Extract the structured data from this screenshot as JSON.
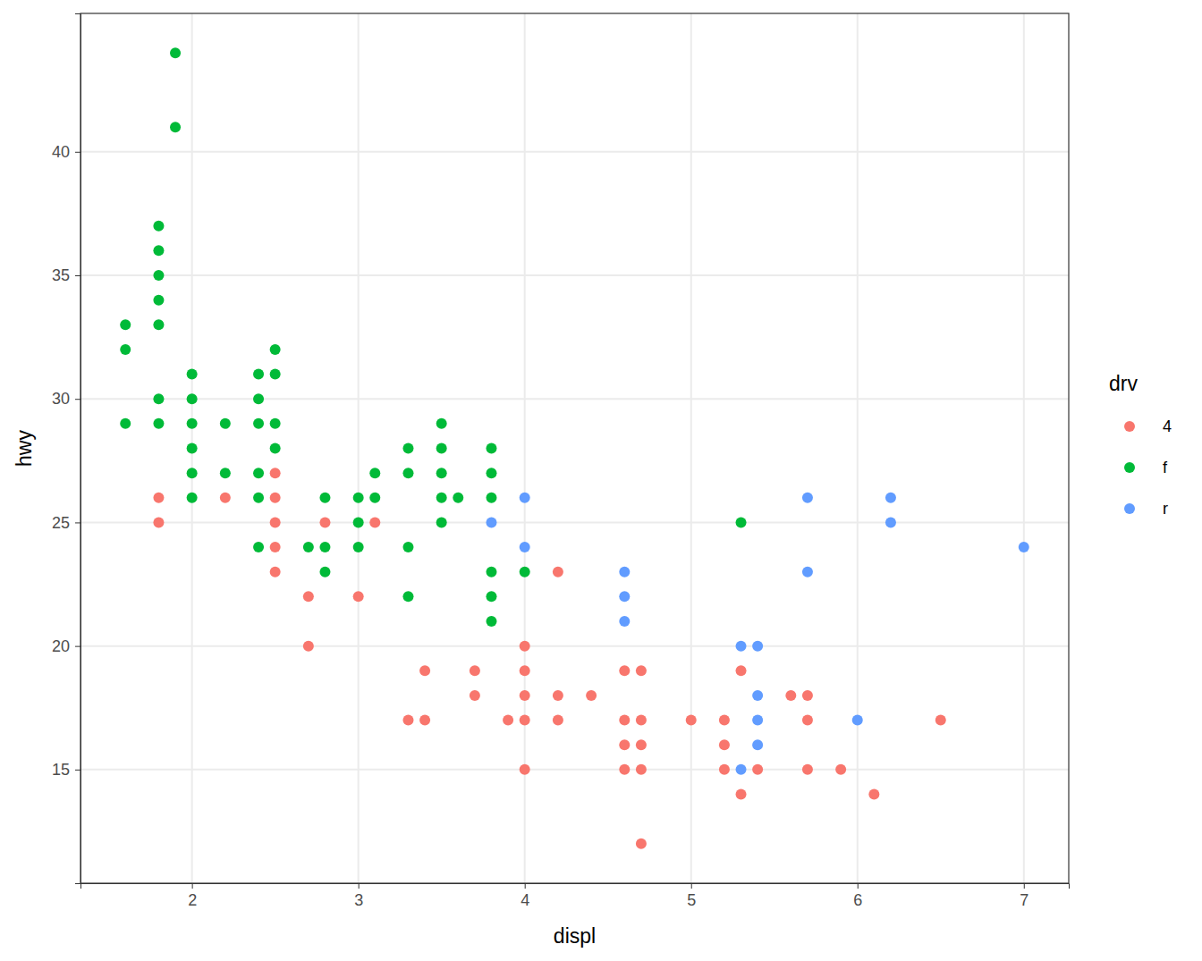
{
  "chart_data": {
    "type": "scatter",
    "x_label": "displ",
    "y_label": "hwy",
    "legend_title": "drv",
    "xlim": [
      1.33,
      7.27
    ],
    "ylim": [
      10.4,
      45.6
    ],
    "xticks": [
      2,
      3,
      4,
      5,
      6,
      7
    ],
    "yticks": [
      15,
      20,
      25,
      30,
      35,
      40
    ],
    "grid": true,
    "legend": "right",
    "marker": "circle",
    "series": [
      {
        "name": "4",
        "color": "#F8766D",
        "x": [
          1.8,
          1.8,
          2.2,
          2.5,
          2.5,
          2.5,
          2.5,
          2.5,
          2.7,
          2.7,
          2.8,
          3.0,
          3.1,
          3.3,
          3.4,
          3.4,
          3.7,
          3.7,
          3.9,
          4.0,
          4.0,
          4.0,
          4.0,
          4.0,
          4.2,
          4.2,
          4.2,
          4.4,
          4.6,
          4.6,
          4.6,
          4.6,
          4.7,
          4.7,
          4.7,
          4.7,
          4.7,
          5.0,
          5.2,
          5.2,
          5.2,
          5.3,
          5.3,
          5.4,
          5.6,
          5.7,
          5.7,
          5.7,
          5.9,
          6.1,
          6.5
        ],
        "values": [
          26,
          25,
          26,
          27,
          26,
          25,
          24,
          23,
          22,
          20,
          25,
          22,
          25,
          17,
          19,
          17,
          19,
          18,
          17,
          20,
          19,
          18,
          17,
          15,
          23,
          18,
          17,
          18,
          19,
          17,
          16,
          15,
          19,
          17,
          16,
          15,
          12,
          17,
          17,
          16,
          15,
          19,
          14,
          15,
          18,
          18,
          17,
          15,
          15,
          14,
          17
        ]
      },
      {
        "name": "f",
        "color": "#00BA38",
        "x": [
          1.6,
          1.6,
          1.6,
          1.8,
          1.8,
          1.8,
          1.8,
          1.8,
          1.8,
          1.8,
          1.9,
          1.9,
          2.0,
          2.0,
          2.0,
          2.0,
          2.0,
          2.0,
          2.2,
          2.2,
          2.4,
          2.4,
          2.4,
          2.4,
          2.4,
          2.4,
          2.5,
          2.5,
          2.5,
          2.5,
          2.7,
          2.8,
          2.8,
          2.8,
          3.0,
          3.0,
          3.0,
          3.1,
          3.1,
          3.3,
          3.3,
          3.3,
          3.3,
          3.5,
          3.5,
          3.5,
          3.5,
          3.5,
          3.6,
          3.8,
          3.8,
          3.8,
          3.8,
          3.8,
          3.8,
          4.0,
          5.3
        ],
        "values": [
          33,
          32,
          29,
          37,
          36,
          35,
          34,
          33,
          30,
          29,
          44,
          41,
          31,
          30,
          29,
          28,
          27,
          26,
          29,
          27,
          31,
          30,
          29,
          27,
          26,
          24,
          32,
          31,
          29,
          28,
          24,
          26,
          24,
          23,
          26,
          25,
          24,
          27,
          26,
          28,
          27,
          24,
          22,
          29,
          28,
          27,
          26,
          25,
          26,
          28,
          27,
          26,
          23,
          22,
          21,
          23,
          25
        ]
      },
      {
        "name": "r",
        "color": "#619CFF",
        "x": [
          3.8,
          4.0,
          4.0,
          4.6,
          4.6,
          4.6,
          5.3,
          5.3,
          5.4,
          5.4,
          5.4,
          5.4,
          5.7,
          5.7,
          6.0,
          6.2,
          6.2,
          7.0
        ],
        "values": [
          25,
          26,
          24,
          23,
          22,
          21,
          20,
          15,
          20,
          18,
          17,
          16,
          26,
          23,
          17,
          26,
          25,
          24
        ]
      }
    ]
  }
}
